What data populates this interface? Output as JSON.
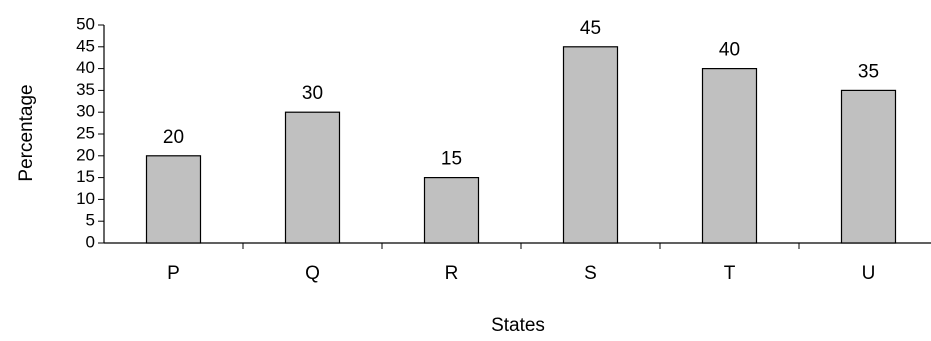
{
  "chart_data": {
    "type": "bar",
    "categories": [
      "P",
      "Q",
      "R",
      "S",
      "T",
      "U"
    ],
    "values": [
      20,
      30,
      15,
      45,
      40,
      35
    ],
    "data_labels": [
      "20",
      "30",
      "15",
      "45",
      "40",
      "35"
    ],
    "xlabel": "States",
    "ylabel": "Percentage",
    "ylim": [
      0,
      50
    ],
    "yticks": [
      0,
      5,
      10,
      15,
      20,
      25,
      30,
      35,
      40,
      45,
      50
    ],
    "grid": false,
    "legend": "none",
    "colors": {
      "bar_fill": "#c0c0c0",
      "bar_stroke": "#000000",
      "axis": "#000000"
    }
  }
}
